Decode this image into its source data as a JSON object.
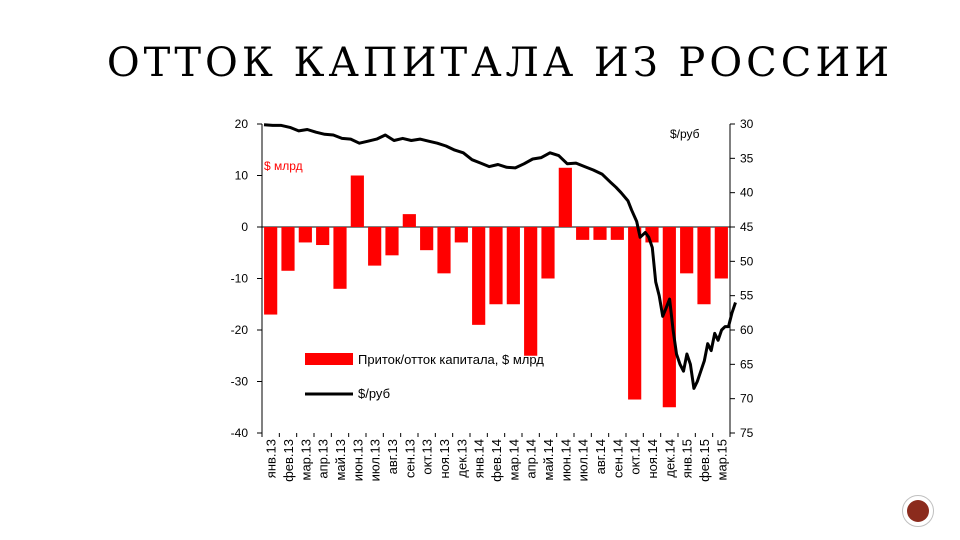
{
  "slide": {
    "title": "ОТТОК КАПИТАЛА ИЗ РОССИИ",
    "page_number": "",
    "badge_color": "#8b2b1d"
  },
  "chart_data": {
    "type": "bar",
    "categories": [
      "янв.13",
      "фев.13",
      "мар.13",
      "апр.13",
      "май.13",
      "июн.13",
      "июл.13",
      "авг.13",
      "сен.13",
      "окт.13",
      "ноя.13",
      "дек.13",
      "янв.14",
      "фев.14",
      "мар.14",
      "апр.14",
      "май.14",
      "июн.14",
      "июл.14",
      "авг.14",
      "сен.14",
      "окт.14",
      "ноя.14",
      "дек.14",
      "янв.15",
      "фев.15",
      "мар.15"
    ],
    "series": [
      {
        "name": "Приток/отток капитала, $ млрд",
        "kind": "bar",
        "axis": "left",
        "color": "#ff0000",
        "values": [
          -17,
          -8.5,
          -3,
          -3.5,
          -12,
          10,
          -7.5,
          -5.5,
          2.5,
          -4.5,
          -9,
          -3,
          -19,
          -15,
          -15,
          -25,
          -10,
          11.5,
          -2.5,
          -2.5,
          -2.5,
          -33.5,
          -3,
          -35,
          -9,
          -15,
          -10
        ]
      },
      {
        "name": "$/руб",
        "kind": "line",
        "axis": "right",
        "color": "#000000",
        "x": [
          0,
          0.5,
          1,
          1.5,
          2,
          2.5,
          3,
          3.5,
          4,
          4.5,
          5,
          5.5,
          6,
          6.5,
          7,
          7.5,
          8,
          8.5,
          9,
          9.5,
          10,
          10.5,
          11,
          11.5,
          12,
          12.5,
          13,
          13.5,
          14,
          14.5,
          15,
          15.5,
          16,
          16.5,
          17,
          17.5,
          18,
          18.5,
          19,
          19.5,
          20,
          20.3,
          20.6,
          21,
          21.2,
          21.5,
          21.7,
          22,
          22.2,
          22.4,
          22.6,
          22.8,
          23,
          23.2,
          23.4,
          23.6,
          23.8,
          24,
          24.2,
          24.4,
          24.6,
          24.8,
          25,
          25.2,
          25.4,
          25.6,
          25.8,
          26,
          26.2,
          26.4,
          26.6,
          26.8,
          27,
          27.2
        ],
        "values": [
          30.1,
          30.2,
          30.2,
          30.5,
          31,
          30.8,
          31.2,
          31.5,
          31.6,
          32.1,
          32.2,
          32.8,
          32.5,
          32.2,
          31.6,
          32.4,
          32.1,
          32.4,
          32.2,
          32.5,
          32.8,
          33.2,
          33.8,
          34.2,
          35.2,
          35.7,
          36.2,
          35.9,
          36.3,
          36.4,
          35.8,
          35.1,
          34.9,
          34.2,
          34.6,
          35.8,
          35.7,
          36.2,
          36.7,
          37.3,
          38.5,
          39.2,
          40,
          41.2,
          42.5,
          44.2,
          46.5,
          45.8,
          46.5,
          48,
          53,
          55,
          58,
          56.8,
          55.5,
          60,
          63.5,
          65,
          66,
          63.5,
          65,
          68.5,
          67.5,
          66,
          64.5,
          62,
          63,
          60.5,
          61.5,
          60,
          59.5,
          59.5,
          57.5,
          56
        ],
        "ylim": [
          30,
          75
        ]
      }
    ],
    "ylim_left": [
      -40,
      20
    ],
    "left_ticks": [
      "20",
      "10",
      "0",
      "-10",
      "-20",
      "-30",
      "-40"
    ],
    "right_ticks": [
      "30",
      "35",
      "40",
      "45",
      "50",
      "55",
      "60",
      "65",
      "70",
      "75"
    ],
    "left_unit_label": "$ млрд",
    "right_unit_label": "$/руб",
    "legend_position": "bottom-left, inside plot",
    "grid": false
  }
}
